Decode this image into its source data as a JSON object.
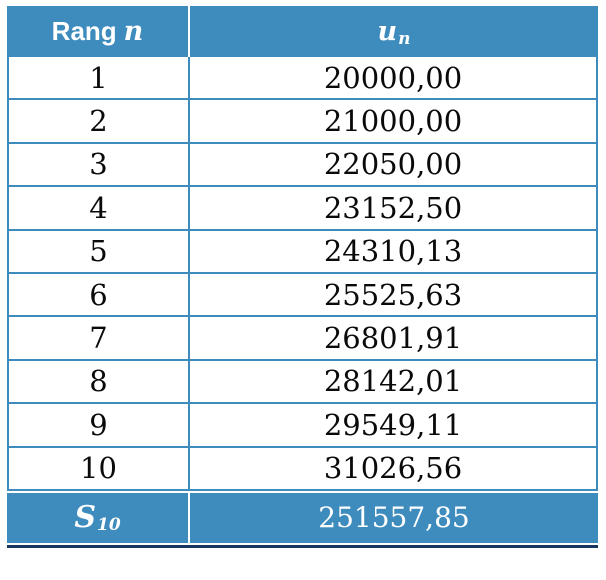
{
  "chart_data": {
    "type": "table",
    "title": "",
    "columns": [
      "Rang n",
      "u_n"
    ],
    "rows": [
      [
        1,
        "20000,00"
      ],
      [
        2,
        "21000,00"
      ],
      [
        3,
        "22050,00"
      ],
      [
        4,
        "23152,50"
      ],
      [
        5,
        "24310,13"
      ],
      [
        6,
        "25525,63"
      ],
      [
        7,
        "26801,91"
      ],
      [
        8,
        "28142,01"
      ],
      [
        9,
        "29549,11"
      ],
      [
        10,
        "31026,56"
      ]
    ],
    "footer": [
      "S_10",
      "251557,85"
    ]
  },
  "table": {
    "header": {
      "rank_text": "Rang",
      "rank_var": "n",
      "value_var": "u",
      "value_sub": "n"
    },
    "rows": [
      {
        "n": "1",
        "u": "20000,00"
      },
      {
        "n": "2",
        "u": "21000,00"
      },
      {
        "n": "3",
        "u": "22050,00"
      },
      {
        "n": "4",
        "u": "23152,50"
      },
      {
        "n": "5",
        "u": "24310,13"
      },
      {
        "n": "6",
        "u": "25525,63"
      },
      {
        "n": "7",
        "u": "26801,91"
      },
      {
        "n": "8",
        "u": "28142,01"
      },
      {
        "n": "9",
        "u": "29549,11"
      },
      {
        "n": "10",
        "u": "31026,56"
      }
    ],
    "footer": {
      "label": "S",
      "label_sub": "10",
      "value": "251557,85"
    }
  },
  "colors": {
    "header_bg": "#3E8CBE",
    "grid": "#3E8CBE",
    "divider": "#FFFFFF",
    "bottom_rule": "#17365D",
    "header_text": "#FFFFFF",
    "body_text": "#0A0A0A"
  }
}
